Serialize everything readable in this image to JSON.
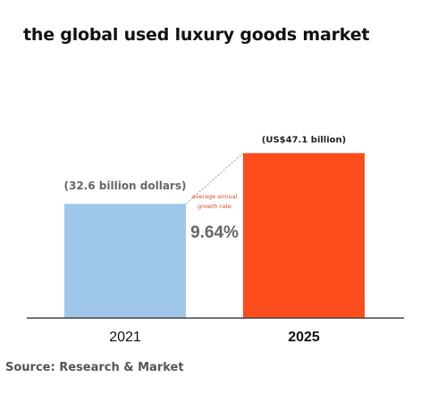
{
  "title": "the global used luxury goods market",
  "source": "Source: Research & Market",
  "chart_data": {
    "type": "bar",
    "title": "the global used luxury goods market",
    "categories": [
      "2021",
      "2025"
    ],
    "values": [
      32.6,
      47.1
    ],
    "data_labels": [
      "(32.6 billion dollars)",
      "(US$47.1 billion)"
    ],
    "colors": [
      "#9fc7ea",
      "#fc4c1c"
    ],
    "category_label_weights": [
      "normal",
      "bold"
    ],
    "annotation": {
      "caption_line1": "average annual",
      "caption_line2": "growth rate",
      "value": "9.64%",
      "caption_color": "#e04a2a",
      "value_color": "#666666"
    },
    "xlabel": "",
    "ylabel": "",
    "grid": false,
    "legend": "none"
  }
}
